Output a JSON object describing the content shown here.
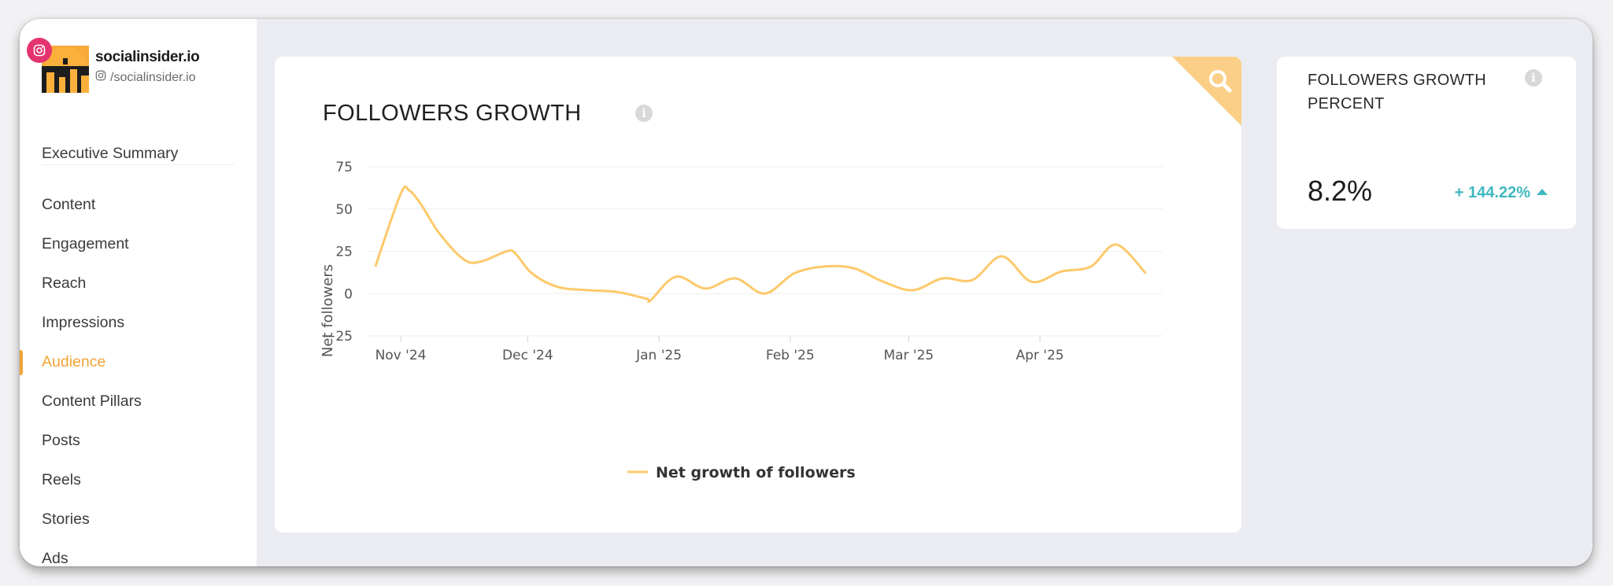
{
  "account": {
    "name": "socialinsider.io",
    "handle": "/socialinsider.io",
    "network_icon": "instagram-icon",
    "brand_color": "#e4336f"
  },
  "sidebar": {
    "items": [
      {
        "label": "Executive Summary",
        "active": false
      },
      {
        "label": "Content",
        "active": false
      },
      {
        "label": "Engagement",
        "active": false
      },
      {
        "label": "Reach",
        "active": false
      },
      {
        "label": "Impressions",
        "active": false
      },
      {
        "label": "Audience",
        "active": true
      },
      {
        "label": "Content Pillars",
        "active": false
      },
      {
        "label": "Posts",
        "active": false
      },
      {
        "label": "Reels",
        "active": false
      },
      {
        "label": "Stories",
        "active": false
      },
      {
        "label": "Ads",
        "active": false
      }
    ],
    "accent_color": "#f2a436"
  },
  "main_card": {
    "title": "FOLLOWERS GROWTH",
    "info_icon": "info-icon",
    "corner_icon": "search-icon"
  },
  "chart_data": {
    "type": "line",
    "title": "",
    "xlabel": "",
    "ylabel": "Net followers",
    "ylim": [
      -25,
      75
    ],
    "yticks": [
      -25,
      0,
      25,
      50,
      75
    ],
    "xtick_labels": [
      "Nov '24",
      "Dec '24",
      "Jan '25",
      "Feb '25",
      "Mar '25",
      "Apr '25"
    ],
    "xtick_dates": [
      "2024-11-01",
      "2024-12-01",
      "2025-01-01",
      "2025-02-01",
      "2025-03-01",
      "2025-04-01"
    ],
    "grid": true,
    "legend": "bottom-center",
    "color": "#fdc96b",
    "series": [
      {
        "name": "Net growth of followers",
        "points": [
          [
            "2024-10-26",
            16
          ],
          [
            "2024-11-01",
            59
          ],
          [
            "2024-11-03",
            61
          ],
          [
            "2024-11-06",
            52
          ],
          [
            "2024-11-10",
            36
          ],
          [
            "2024-11-16",
            20
          ],
          [
            "2024-11-20",
            19
          ],
          [
            "2024-11-26",
            25
          ],
          [
            "2024-11-28",
            24
          ],
          [
            "2024-12-02",
            12
          ],
          [
            "2024-12-08",
            4
          ],
          [
            "2024-12-15",
            2
          ],
          [
            "2024-12-22",
            1
          ],
          [
            "2024-12-29",
            -3
          ],
          [
            "2024-12-30",
            -4
          ],
          [
            "2025-01-05",
            10
          ],
          [
            "2025-01-12",
            3
          ],
          [
            "2025-01-19",
            9
          ],
          [
            "2025-01-26",
            0
          ],
          [
            "2025-02-02",
            12
          ],
          [
            "2025-02-09",
            16
          ],
          [
            "2025-02-16",
            15
          ],
          [
            "2025-02-23",
            7
          ],
          [
            "2025-03-02",
            2
          ],
          [
            "2025-03-09",
            9
          ],
          [
            "2025-03-16",
            8
          ],
          [
            "2025-03-23",
            22
          ],
          [
            "2025-03-30",
            7
          ],
          [
            "2025-04-06",
            13
          ],
          [
            "2025-04-13",
            16
          ],
          [
            "2025-04-19",
            29
          ],
          [
            "2025-04-26",
            12
          ]
        ]
      }
    ]
  },
  "metric_card": {
    "title": "FOLLOWERS GROWTH PERCENT",
    "value": "8.2%",
    "change": "+ 144.22%",
    "trend": "up",
    "change_color": "#3fb8bf",
    "info_icon": "info-icon"
  }
}
